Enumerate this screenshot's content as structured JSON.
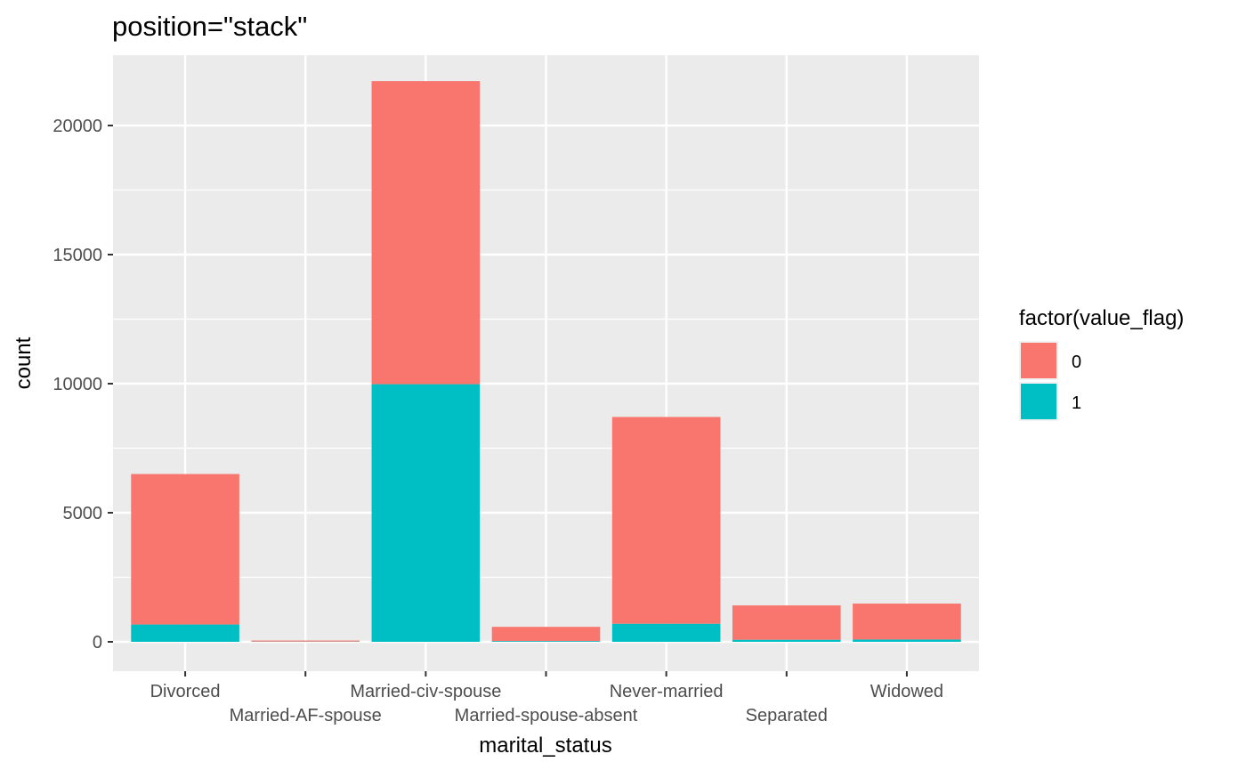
{
  "chart_data": {
    "type": "bar",
    "stacked": true,
    "title": "position=\"stack\"",
    "xlabel": "marital_status",
    "ylabel": "count",
    "categories": [
      "Divorced",
      "Married-AF-spouse",
      "Married-civ-spouse",
      "Married-spouse-absent",
      "Never-married",
      "Separated",
      "Widowed"
    ],
    "series": [
      {
        "name": "0",
        "color": "#F8766D",
        "values": [
          5830,
          40,
          11740,
          550,
          8010,
          1330,
          1390
        ]
      },
      {
        "name": "1",
        "color": "#00BFC4",
        "values": [
          670,
          10,
          9980,
          30,
          700,
          80,
          90
        ]
      }
    ],
    "ylim": [
      0,
      21700
    ],
    "yticks": [
      0,
      5000,
      10000,
      15000,
      20000
    ],
    "grid": true,
    "legend": {
      "title": "factor(value_flag)",
      "position": "right"
    }
  }
}
